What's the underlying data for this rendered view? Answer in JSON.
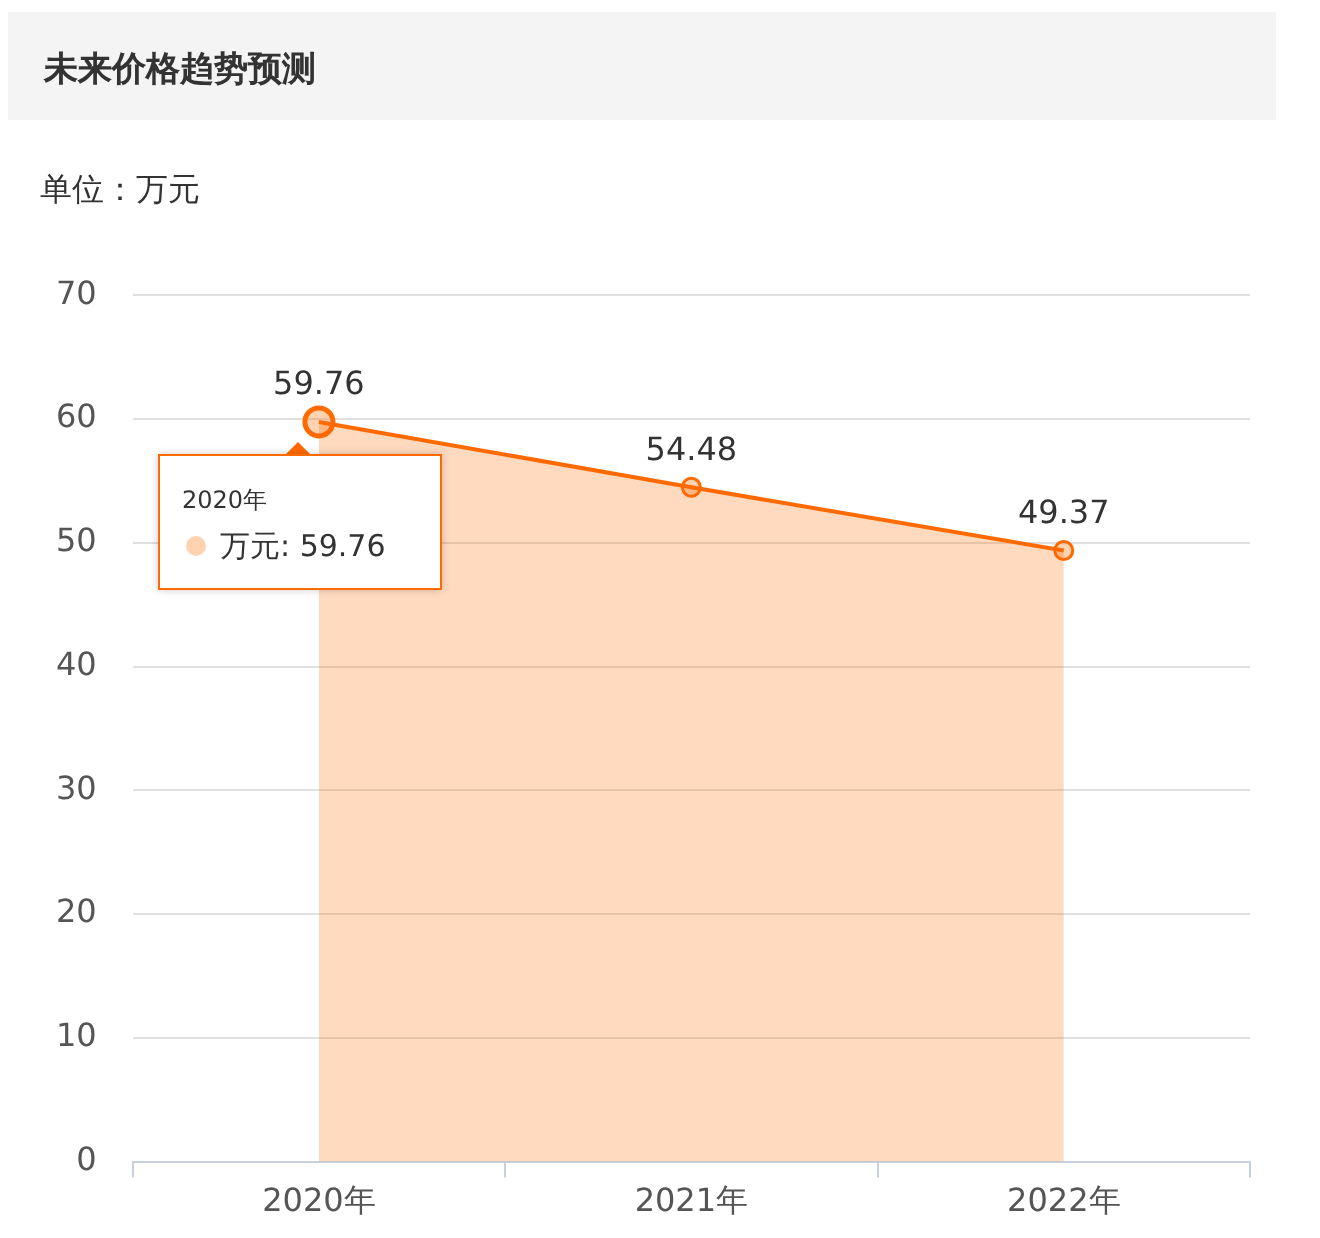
{
  "chart_data": {
    "type": "area",
    "title": "未来价格趋势预测",
    "subtitle": "单位：万元",
    "categories": [
      "2020年",
      "2021年",
      "2022年"
    ],
    "series": [
      {
        "color": "#ff6a00",
        "values": [
          59.76,
          54.48,
          49.37
        ]
      }
    ],
    "ylim": [
      0,
      70
    ],
    "yticks": [
      0,
      10,
      20,
      30,
      40,
      50,
      60,
      70
    ],
    "grid": "y",
    "legend": false,
    "marker": "circle",
    "data_labels": true,
    "annotations": [
      "2020年",
      "万元: 59.76"
    ]
  }
}
